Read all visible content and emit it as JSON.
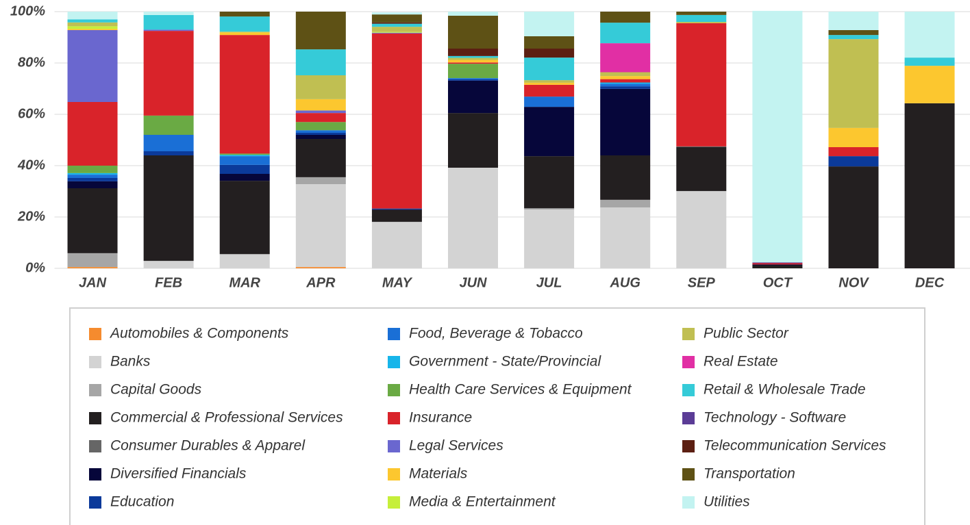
{
  "chart_data": {
    "type": "stacked-bar",
    "categories": [
      "JAN",
      "FEB",
      "MAR",
      "APR",
      "MAY",
      "JUN",
      "JUL",
      "AUG",
      "SEP",
      "OCT",
      "NOV",
      "DEC"
    ],
    "ylim": [
      0,
      100
    ],
    "yticks": [
      {
        "value": 0,
        "label": "0%"
      },
      {
        "value": 20,
        "label": "20%"
      },
      {
        "value": 40,
        "label": "40%"
      },
      {
        "value": 60,
        "label": "60%"
      },
      {
        "value": 80,
        "label": "80%"
      },
      {
        "value": 100,
        "label": "100%"
      }
    ],
    "grid": true,
    "legend": "bottom",
    "series": [
      {
        "name": "Automobiles & Components",
        "color": "#f58b2e",
        "values": [
          0.5,
          0,
          0,
          0.5,
          0,
          0,
          0,
          0,
          0,
          0,
          0,
          0
        ]
      },
      {
        "name": "Banks",
        "color": "#d3d3d3",
        "values": [
          0,
          2.9,
          5.3,
          32.3,
          18.1,
          39.2,
          22.9,
          23.7,
          30.1,
          0,
          0,
          0
        ]
      },
      {
        "name": "Capital Goods",
        "color": "#a6a6a6",
        "values": [
          5.4,
          0,
          0.3,
          2.7,
          0,
          0,
          0.5,
          3,
          0,
          0,
          0,
          0
        ]
      },
      {
        "name": "Commercial & Professional Services",
        "color": "#231f20",
        "values": [
          25.3,
          41.1,
          28.5,
          14.9,
          4.6,
          21.3,
          20.3,
          17.3,
          17.1,
          1.2,
          39.7,
          64.3
        ]
      },
      {
        "name": "Consumer Durables & Apparel",
        "color": "#666666",
        "values": [
          0,
          0,
          0,
          0,
          0,
          0,
          0,
          0,
          0.3,
          0,
          0,
          0
        ]
      },
      {
        "name": "Diversified Financials",
        "color": "#06063a",
        "values": [
          2.7,
          0,
          2.7,
          1.6,
          0.3,
          12.6,
          19.2,
          25.9,
          0,
          0.3,
          0,
          0
        ]
      },
      {
        "name": "Education",
        "color": "#0b3a9a",
        "values": [
          1.3,
          1.6,
          3.5,
          0.8,
          0.3,
          0.5,
          0,
          1,
          0,
          0,
          4,
          0
        ]
      },
      {
        "name": "Food, Beverage & Tobacco",
        "color": "#1a6fd6",
        "values": [
          1.3,
          6.4,
          3.4,
          1,
          0,
          0.5,
          4,
          1,
          0,
          0,
          0,
          0
        ]
      },
      {
        "name": "Government - State/Provincial",
        "color": "#17b5ea",
        "values": [
          0.6,
          0,
          0.5,
          0,
          0,
          0,
          0,
          0.5,
          0,
          0,
          0,
          0
        ]
      },
      {
        "name": "Health Care Services & Equipment",
        "color": "#6aaa44",
        "values": [
          2.9,
          7.5,
          0.5,
          3.2,
          0,
          5.6,
          0,
          0,
          0,
          0,
          0,
          0
        ]
      },
      {
        "name": "Insurance",
        "color": "#d9232a",
        "values": [
          24.8,
          33,
          46.2,
          3.5,
          68.2,
          0.5,
          4.6,
          1.3,
          48,
          0.5,
          3.5,
          0
        ]
      },
      {
        "name": "Legal Services",
        "color": "#6a67cf",
        "values": [
          28,
          0.5,
          0,
          1,
          0.3,
          0,
          0,
          0,
          0,
          0,
          0,
          0
        ]
      },
      {
        "name": "Materials",
        "color": "#fcc72f",
        "values": [
          0.5,
          0,
          1,
          4.4,
          0,
          1,
          0.8,
          1.2,
          0,
          0,
          7.5,
          14.6
        ]
      },
      {
        "name": "Media & Entertainment",
        "color": "#c6ef3a",
        "values": [
          1,
          0,
          0,
          0,
          0.3,
          0,
          0,
          0,
          0,
          0,
          0,
          0
        ]
      },
      {
        "name": "Public Sector",
        "color": "#c0bf52",
        "values": [
          1.5,
          0,
          0.3,
          9.3,
          2,
          0.8,
          1,
          1.5,
          0.5,
          0,
          34.6,
          0
        ]
      },
      {
        "name": "Real Estate",
        "color": "#e12fa4",
        "values": [
          0,
          0,
          0,
          0,
          0,
          0,
          0,
          11.3,
          0,
          0,
          0,
          0
        ]
      },
      {
        "name": "Retail & Wholesale Trade",
        "color": "#35cbd8",
        "values": [
          1.2,
          5.7,
          5.9,
          10.1,
          1.2,
          0.7,
          8.8,
          8,
          2.7,
          0,
          1.6,
          3.2
        ]
      },
      {
        "name": "Technology - Software",
        "color": "#5b3c96",
        "values": [
          0,
          0,
          0,
          0,
          0,
          0,
          0,
          0,
          0,
          0.3,
          0,
          0
        ]
      },
      {
        "name": "Telecommunication Services",
        "color": "#5c1f12",
        "values": [
          0,
          0,
          0,
          0,
          0.5,
          2.9,
          3.5,
          0,
          0,
          0,
          0,
          0
        ]
      },
      {
        "name": "Transportation",
        "color": "#5e5115",
        "values": [
          0,
          0,
          1.9,
          14.7,
          3.1,
          12.8,
          4.8,
          4.3,
          1.3,
          0,
          1.9,
          0
        ]
      },
      {
        "name": "Utilities",
        "color": "#c3f3f1",
        "values": [
          3,
          1.3,
          0,
          0,
          0.8,
          1.6,
          9.6,
          0,
          0,
          98,
          7.2,
          17.9
        ]
      }
    ]
  }
}
